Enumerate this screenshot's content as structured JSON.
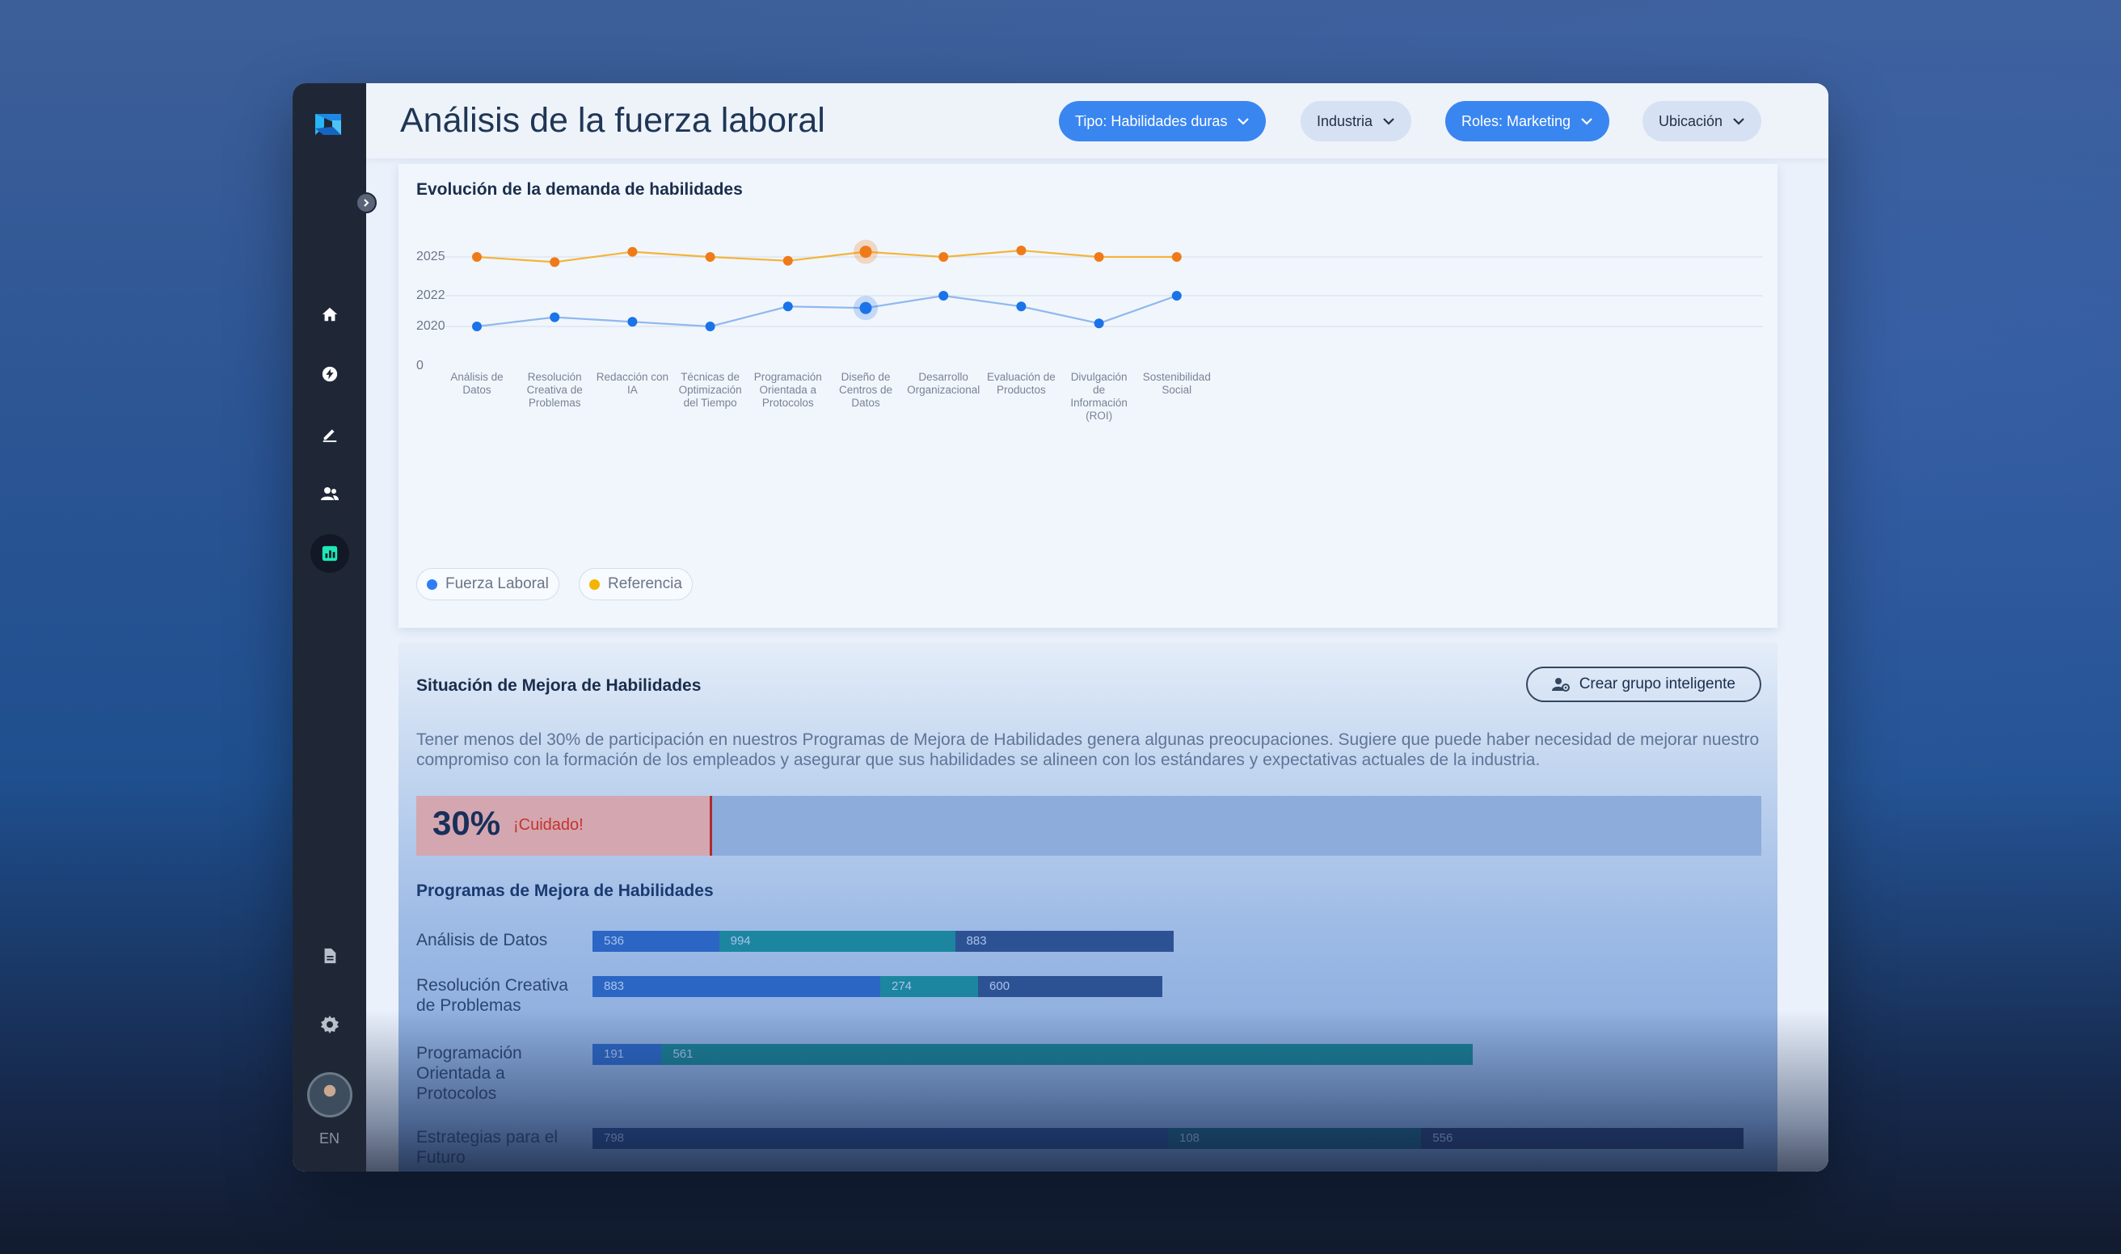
{
  "header": {
    "title": "Análisis de la fuerza laboral",
    "filters": [
      {
        "label": "Tipo: Habilidades duras",
        "active": true
      },
      {
        "label": "Industria",
        "active": false
      },
      {
        "label": "Roles: Marketing",
        "active": true
      },
      {
        "label": "Ubicación",
        "active": false
      }
    ]
  },
  "sidebar": {
    "items": [
      "home-icon",
      "bolt-icon",
      "pencil-icon",
      "people-icon",
      "analytics-icon",
      "document-icon",
      "gear-icon"
    ],
    "active_item": "analytics-icon",
    "language": "EN"
  },
  "demand_card": {
    "title": "Evolución de la demanda de habilidades"
  },
  "chart_data": {
    "type": "line",
    "title": "Evolución de la demanda de habilidades",
    "categories": [
      "Análisis de Datos",
      "Resolución Creativa de Problemas",
      "Redacción con IA",
      "Técnicas de Optimización del Tiempo",
      "Programación Orientada a Protocolos",
      "Diseño de Centros de Datos",
      "Desarrollo Organizacional",
      "Evaluación de Productos",
      "Divulgación de Información (ROI)",
      "Sostenibilidad Social"
    ],
    "y_ticks": [
      "0",
      "2020",
      "2022",
      "2025"
    ],
    "series": [
      {
        "name": "Fuerza Laboral",
        "color": "#1a73e8",
        "values": [
          2019.9,
          2020.6,
          2020.3,
          2019.9,
          2021.3,
          2021.2,
          2022.0,
          2021.3,
          2020.2,
          2022.0
        ]
      },
      {
        "name": "Referencia",
        "color": "#f08a24",
        "values": [
          2025.0,
          2024.6,
          2025.4,
          2025.0,
          2024.7,
          2025.4,
          2025.0,
          2025.5,
          2025.0,
          2025.0
        ]
      }
    ],
    "legend_colors": [
      "#2e7cf6",
      "#f4b400"
    ],
    "highlighted_index": 5
  },
  "upskilling": {
    "title": "Situación de Mejora de Habilidades",
    "button_label": "Crear grupo inteligente",
    "description": "Tener menos del 30% de participación en nuestros Programas de Mejora de Habilidades genera algunas preocupaciones. Sugiere que puede haber necesidad de mejorar nuestro compromiso con la formación de los empleados y asegurar que sus habilidades se alineen con los estándares y expectativas actuales de la industria.",
    "participation_value": "30%",
    "participation_fraction": 0.22,
    "warning": "¡Cuidado!",
    "programs_title": "Programas de Mejora de Habilidades",
    "programs": [
      {
        "label": "Análisis de Datos",
        "segments": [
          {
            "value": "536",
            "w": 0.11,
            "color": "#2c66c4"
          },
          {
            "value": "994",
            "w": 0.205,
            "color": "#1c86a0"
          },
          {
            "value": "883",
            "w": 0.19,
            "color": "#2d5294"
          }
        ]
      },
      {
        "label": "Resolución Creativa de Problemas",
        "segments": [
          {
            "value": "883",
            "w": 0.25,
            "color": "#2c66c4"
          },
          {
            "value": "274",
            "w": 0.085,
            "color": "#1c86a0"
          },
          {
            "value": "600",
            "w": 0.16,
            "color": "#2d5294"
          }
        ]
      },
      {
        "label": "Programación Orientada a Protocolos",
        "segments": [
          {
            "value": "191",
            "w": 0.06,
            "color": "#2c66c4"
          },
          {
            "value": "561",
            "w": 0.705,
            "color": "#1a7f95"
          }
        ]
      },
      {
        "label": "Estrategias para el Futuro",
        "segments": [
          {
            "value": "798",
            "w": 0.5,
            "color": "#24468a"
          },
          {
            "value": "108",
            "w": 0.22,
            "color": "#185a7a"
          },
          {
            "value": "556",
            "w": 0.28,
            "color": "#243a6e"
          }
        ]
      }
    ]
  }
}
